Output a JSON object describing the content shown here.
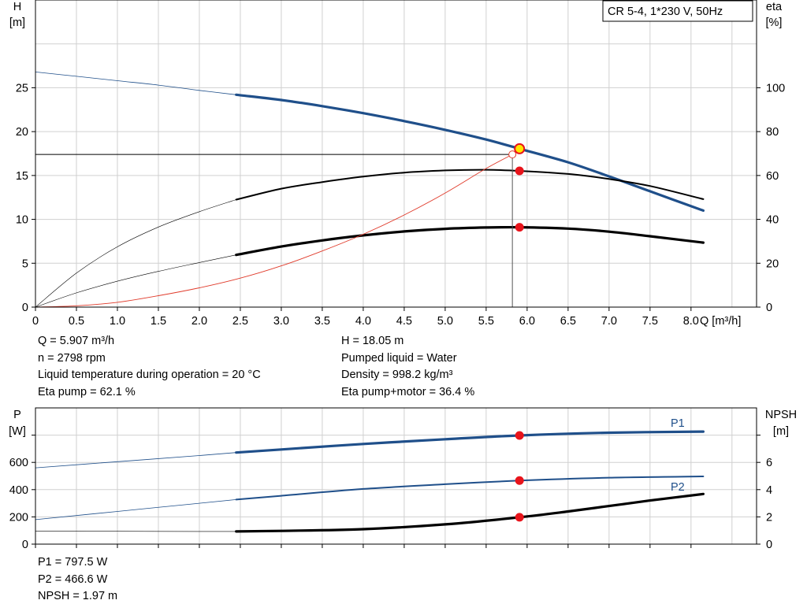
{
  "pump_label": "CR 5-4, 1*230 V, 50Hz",
  "head_chart": {
    "left_axis": {
      "symbol": "H",
      "unit": "[m]"
    },
    "right_axis": {
      "symbol": "eta",
      "unit": "[%]"
    },
    "x_axis_label": "Q [m³/h]"
  },
  "power_chart": {
    "left_axis": {
      "symbol": "P",
      "unit": "[W]"
    },
    "right_axis": {
      "symbol": "NPSH",
      "unit": "[m]"
    }
  },
  "operating_point": [
    {
      "id": "q",
      "text": "Q = 5.907 m³/h"
    },
    {
      "id": "h",
      "text": "H = 18.05 m"
    },
    {
      "id": "n",
      "text": "n = 2798 rpm"
    },
    {
      "id": "liquid",
      "text": "Pumped liquid = Water"
    },
    {
      "id": "temp",
      "text": "Liquid temperature during operation = 20 °C"
    },
    {
      "id": "density",
      "text": "Density = 998.2 kg/m³"
    },
    {
      "id": "eta_pump",
      "text": "Eta pump = 62.1 %"
    },
    {
      "id": "eta_total",
      "text": "Eta pump+motor = 36.4 %"
    }
  ],
  "power_values": [
    {
      "id": "p1",
      "text": "P1 = 797.5 W"
    },
    {
      "id": "p2",
      "text": "P2 = 466.6 W"
    },
    {
      "id": "npsh",
      "text": "NPSH = 1.97 m"
    }
  ],
  "colors": {
    "head": "#1f4f8a",
    "eta": "#000000",
    "system": "#e03a2a",
    "duty_marker": "#e8141b",
    "duty_highlight": "#ffe600",
    "grid": "#d0d0d0"
  },
  "chart_data": [
    {
      "type": "line",
      "title": "",
      "xlabel": "Q [m³/h]",
      "ylabel": "H [m]",
      "y2label": "eta [%]",
      "xlim": [
        0,
        8.8
      ],
      "ylim": [
        0,
        35
      ],
      "y2lim": [
        0,
        140
      ],
      "x_ticks": [
        "0",
        "0.5",
        "1.0",
        "1.5",
        "2.0",
        "2.5",
        "3.0",
        "3.5",
        "4.0",
        "4.5",
        "5.0",
        "5.5",
        "6.0",
        "6.5",
        "7.0",
        "7.5",
        "8.0"
      ],
      "y_ticks": [
        "0",
        "5",
        "10",
        "15",
        "20",
        "25"
      ],
      "y2_ticks": [
        "0",
        "20",
        "40",
        "60",
        "80",
        "100"
      ],
      "grid": true,
      "operating_range": [
        2.45,
        8.15
      ],
      "series": [
        {
          "id": "head",
          "axis": "left",
          "x": [
            0,
            0.5,
            1.0,
            1.5,
            2.0,
            2.45,
            3.0,
            3.5,
            4.0,
            4.5,
            5.0,
            5.5,
            5.907,
            6.5,
            7.0,
            7.5,
            8.15
          ],
          "y": [
            26.8,
            26.3,
            25.8,
            25.3,
            24.7,
            24.2,
            23.6,
            22.9,
            22.1,
            21.2,
            20.2,
            19.1,
            18.05,
            16.5,
            14.9,
            13.2,
            11.0
          ]
        },
        {
          "id": "eta_pump",
          "axis": "right",
          "x": [
            0,
            0.5,
            1.0,
            1.5,
            2.0,
            2.45,
            3.0,
            3.5,
            4.0,
            4.5,
            5.0,
            5.5,
            5.907,
            6.5,
            7.0,
            7.5,
            8.15
          ],
          "y": [
            0,
            15.5,
            27.5,
            36.5,
            43.5,
            49,
            54,
            57,
            59.5,
            61.3,
            62.3,
            62.6,
            62.1,
            60.7,
            58.4,
            55.2,
            49.2
          ]
        },
        {
          "id": "eta_total",
          "axis": "right",
          "x": [
            0,
            0.5,
            1.0,
            1.5,
            2.0,
            2.45,
            3.0,
            3.5,
            4.0,
            4.5,
            5.0,
            5.5,
            5.907,
            6.5,
            7.0,
            7.5,
            8.15
          ],
          "y": [
            0,
            6.5,
            11.8,
            16.3,
            20.3,
            23.8,
            27.6,
            30.4,
            32.7,
            34.5,
            35.7,
            36.3,
            36.4,
            35.8,
            34.4,
            32.3,
            29.4
          ]
        },
        {
          "id": "system_curve",
          "axis": "left",
          "x": [
            0,
            0.5,
            1.0,
            1.5,
            2.0,
            2.5,
            3.0,
            3.5,
            4.0,
            4.5,
            5.0,
            5.5,
            5.82
          ],
          "y": [
            0,
            0.15,
            0.55,
            1.3,
            2.2,
            3.3,
            4.7,
            6.4,
            8.3,
            10.5,
            13.0,
            15.8,
            17.4
          ]
        }
      ],
      "duty_point": {
        "q": 5.907,
        "h": 18.05,
        "eta_pump": 62.1,
        "eta_total": 36.4
      },
      "requested_point": {
        "q": 5.82,
        "h": 17.4
      }
    },
    {
      "type": "line",
      "title": "",
      "ylabel": "P [W]",
      "y2label": "NPSH [m]",
      "xlim": [
        0,
        8.8
      ],
      "ylim": [
        0,
        1000
      ],
      "y2lim": [
        0,
        10
      ],
      "y_ticks": [
        "0",
        "200",
        "400",
        "600"
      ],
      "y2_ticks": [
        "0",
        "2",
        "4",
        "6"
      ],
      "grid": true,
      "operating_range": [
        2.45,
        8.15
      ],
      "series": [
        {
          "id": "p1",
          "name": "P1",
          "axis": "left",
          "x": [
            0,
            1.0,
            2.0,
            2.45,
            3.0,
            4.0,
            5.0,
            5.907,
            7.0,
            8.15
          ],
          "y": [
            560,
            605,
            650,
            672,
            695,
            735,
            770,
            797.5,
            818,
            826
          ]
        },
        {
          "id": "p2",
          "name": "P2",
          "axis": "left",
          "x": [
            0,
            1.0,
            2.0,
            2.45,
            3.0,
            4.0,
            5.0,
            5.907,
            7.0,
            8.15
          ],
          "y": [
            180,
            240,
            300,
            327,
            355,
            405,
            440,
            466.6,
            488,
            497
          ]
        },
        {
          "id": "npsh",
          "axis": "right",
          "x": [
            0,
            1.0,
            2.0,
            2.45,
            3.0,
            4.0,
            5.0,
            5.907,
            6.5,
            7.0,
            7.5,
            8.15
          ],
          "y": [
            0.95,
            0.94,
            0.93,
            0.93,
            0.97,
            1.1,
            1.45,
            1.97,
            2.4,
            2.8,
            3.2,
            3.68
          ]
        }
      ],
      "duty_point": {
        "q": 5.907,
        "p1": 797.5,
        "p2": 466.6,
        "npsh": 1.97
      }
    }
  ]
}
